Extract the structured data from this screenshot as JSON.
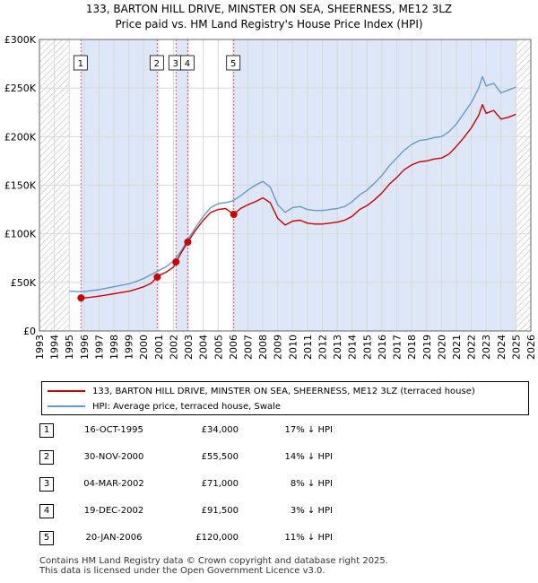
{
  "header": {
    "line1": "133, BARTON HILL DRIVE, MINSTER ON SEA, SHEERNESS, ME12 3LZ",
    "line2": "Price paid vs. HM Land Registry's House Price Index (HPI)"
  },
  "legend": {
    "red_label": "133, BARTON HILL DRIVE, MINSTER ON SEA, SHEERNESS, ME12 3LZ (terraced house)",
    "blue_label": "HPI: Average price, terraced house, Swale"
  },
  "colors": {
    "red": "#cc0000",
    "blue": "#6699cc",
    "shade": "#dde7f7",
    "hatch": "#aaaaaa"
  },
  "chart_data": {
    "type": "line",
    "title": "Price paid vs. HM Land Registry's House Price Index (HPI)",
    "xlim": [
      1993,
      2026
    ],
    "ylim": [
      0,
      300000
    ],
    "xticks": [
      1993,
      1994,
      1995,
      1996,
      1997,
      1998,
      1999,
      2000,
      2001,
      2002,
      2003,
      2004,
      2005,
      2006,
      2007,
      2008,
      2009,
      2010,
      2011,
      2012,
      2013,
      2014,
      2015,
      2016,
      2017,
      2018,
      2019,
      2020,
      2021,
      2022,
      2023,
      2024,
      2025,
      2026
    ],
    "yticks": [
      {
        "value": 0,
        "label": "£0"
      },
      {
        "value": 50000,
        "label": "£50K"
      },
      {
        "value": 100000,
        "label": "£100K"
      },
      {
        "value": 150000,
        "label": "£150K"
      },
      {
        "value": 200000,
        "label": "£200K"
      },
      {
        "value": 250000,
        "label": "£250K"
      },
      {
        "value": 300000,
        "label": "£300K"
      }
    ],
    "data_start": 1995.0,
    "data_end": 2025.0,
    "series": [
      {
        "name": "HPI: Average price, terraced house, Swale",
        "color": "#6699cc",
        "points": [
          [
            1995.0,
            41000
          ],
          [
            1995.5,
            40500
          ],
          [
            1996.0,
            40500
          ],
          [
            1996.5,
            41500
          ],
          [
            1997.0,
            42500
          ],
          [
            1997.5,
            44000
          ],
          [
            1998.0,
            45500
          ],
          [
            1998.5,
            47000
          ],
          [
            1999.0,
            48500
          ],
          [
            1999.5,
            51000
          ],
          [
            2000.0,
            54000
          ],
          [
            2000.5,
            58000
          ],
          [
            2001.0,
            62000
          ],
          [
            2001.5,
            66000
          ],
          [
            2002.0,
            72000
          ],
          [
            2002.5,
            82000
          ],
          [
            2003.0,
            95000
          ],
          [
            2003.5,
            107000
          ],
          [
            2004.0,
            118000
          ],
          [
            2004.5,
            127000
          ],
          [
            2005.0,
            131000
          ],
          [
            2005.5,
            132000
          ],
          [
            2006.0,
            134000
          ],
          [
            2006.5,
            139000
          ],
          [
            2007.0,
            145000
          ],
          [
            2007.5,
            150000
          ],
          [
            2008.0,
            154000
          ],
          [
            2008.5,
            148000
          ],
          [
            2009.0,
            130000
          ],
          [
            2009.5,
            122000
          ],
          [
            2010.0,
            127000
          ],
          [
            2010.5,
            128000
          ],
          [
            2011.0,
            125000
          ],
          [
            2011.5,
            124000
          ],
          [
            2012.0,
            124000
          ],
          [
            2012.5,
            125000
          ],
          [
            2013.0,
            126000
          ],
          [
            2013.5,
            128000
          ],
          [
            2014.0,
            133000
          ],
          [
            2014.5,
            140000
          ],
          [
            2015.0,
            145000
          ],
          [
            2015.5,
            152000
          ],
          [
            2016.0,
            160000
          ],
          [
            2016.5,
            170000
          ],
          [
            2017.0,
            178000
          ],
          [
            2017.5,
            186000
          ],
          [
            2018.0,
            192000
          ],
          [
            2018.5,
            196000
          ],
          [
            2019.0,
            197000
          ],
          [
            2019.5,
            199000
          ],
          [
            2020.0,
            200000
          ],
          [
            2020.5,
            205000
          ],
          [
            2021.0,
            213000
          ],
          [
            2021.5,
            224000
          ],
          [
            2022.0,
            235000
          ],
          [
            2022.5,
            250000
          ],
          [
            2022.75,
            262000
          ],
          [
            2023.0,
            252000
          ],
          [
            2023.5,
            255000
          ],
          [
            2024.0,
            245000
          ],
          [
            2024.5,
            248000
          ],
          [
            2025.0,
            251000
          ]
        ]
      },
      {
        "name": "133, BARTON HILL DRIVE, MINSTER ON SEA, SHEERNESS, ME12 3LZ (terraced house)",
        "color": "#cc0000",
        "points": [
          [
            1995.79,
            34000
          ],
          [
            1996.0,
            34000
          ],
          [
            1996.5,
            34800
          ],
          [
            1997.0,
            35800
          ],
          [
            1997.5,
            37000
          ],
          [
            1998.0,
            38300
          ],
          [
            1998.5,
            39600
          ],
          [
            1999.0,
            40800
          ],
          [
            1999.5,
            43000
          ],
          [
            2000.0,
            45500
          ],
          [
            2000.5,
            49000
          ],
          [
            2000.91,
            55500
          ],
          [
            2001.0,
            57000
          ],
          [
            2001.5,
            60500
          ],
          [
            2002.0,
            65800
          ],
          [
            2002.17,
            71000
          ],
          [
            2002.5,
            80000
          ],
          [
            2002.96,
            91500
          ],
          [
            2003.5,
            104000
          ],
          [
            2004.0,
            114000
          ],
          [
            2004.5,
            122000
          ],
          [
            2005.0,
            125000
          ],
          [
            2005.5,
            126000
          ],
          [
            2006.05,
            120000
          ],
          [
            2006.5,
            126000
          ],
          [
            2007.0,
            130000
          ],
          [
            2007.5,
            133000
          ],
          [
            2008.0,
            137000
          ],
          [
            2008.5,
            132000
          ],
          [
            2009.0,
            116000
          ],
          [
            2009.5,
            109000
          ],
          [
            2010.0,
            113000
          ],
          [
            2010.5,
            114000
          ],
          [
            2011.0,
            111000
          ],
          [
            2011.5,
            110000
          ],
          [
            2012.0,
            110000
          ],
          [
            2012.5,
            111000
          ],
          [
            2013.0,
            112000
          ],
          [
            2013.5,
            114000
          ],
          [
            2014.0,
            118000
          ],
          [
            2014.5,
            125000
          ],
          [
            2015.0,
            129000
          ],
          [
            2015.5,
            135000
          ],
          [
            2016.0,
            142000
          ],
          [
            2016.5,
            151000
          ],
          [
            2017.0,
            158000
          ],
          [
            2017.5,
            166000
          ],
          [
            2018.0,
            171000
          ],
          [
            2018.5,
            174000
          ],
          [
            2019.0,
            175000
          ],
          [
            2019.5,
            177000
          ],
          [
            2020.0,
            178000
          ],
          [
            2020.5,
            182000
          ],
          [
            2021.0,
            190000
          ],
          [
            2021.5,
            199000
          ],
          [
            2022.0,
            209000
          ],
          [
            2022.5,
            222000
          ],
          [
            2022.75,
            233000
          ],
          [
            2023.0,
            224000
          ],
          [
            2023.5,
            227000
          ],
          [
            2024.0,
            218000
          ],
          [
            2024.5,
            220000
          ],
          [
            2025.0,
            223000
          ]
        ]
      }
    ],
    "sales": [
      {
        "id": "1",
        "date": "16-OCT-1995",
        "year": 1995.79,
        "price": 34000,
        "price_label": "£34,000",
        "hpi": "17% ↓ HPI"
      },
      {
        "id": "2",
        "date": "30-NOV-2000",
        "year": 2000.91,
        "price": 55500,
        "price_label": "£55,500",
        "hpi": "14% ↓ HPI"
      },
      {
        "id": "3",
        "date": "04-MAR-2002",
        "year": 2002.17,
        "price": 71000,
        "price_label": "£71,000",
        "hpi": "8% ↓ HPI"
      },
      {
        "id": "4",
        "date": "19-DEC-2002",
        "year": 2002.96,
        "price": 91500,
        "price_label": "£91,500",
        "hpi": "3% ↓ HPI"
      },
      {
        "id": "5",
        "date": "20-JAN-2006",
        "year": 2006.05,
        "price": 120000,
        "price_label": "£120,000",
        "hpi": "11% ↓ HPI"
      }
    ]
  },
  "footer": {
    "line1": "Contains HM Land Registry data © Crown copyright and database right 2025.",
    "line2": "This data is licensed under the Open Government Licence v3.0."
  }
}
